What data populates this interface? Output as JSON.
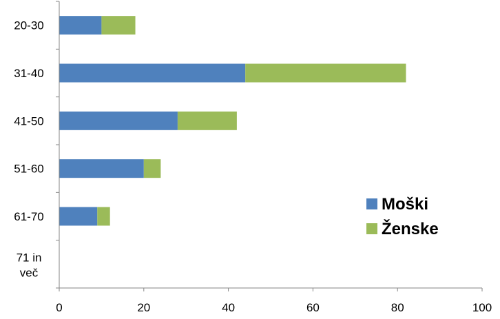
{
  "chart_data": {
    "type": "bar",
    "orientation": "horizontal",
    "stacked": true,
    "categories": [
      "20-30",
      "31-40",
      "41-50",
      "51-60",
      "61-70",
      "71 in več"
    ],
    "series": [
      {
        "name": "Moški",
        "values": [
          10,
          44,
          28,
          20,
          9,
          0
        ],
        "color": "#4f81bd"
      },
      {
        "name": "Ženske",
        "values": [
          8,
          38,
          14,
          4,
          3,
          0
        ],
        "color": "#9bbb59"
      }
    ],
    "xlim": [
      0,
      100
    ],
    "xticks": [
      0,
      20,
      40,
      60,
      80,
      100
    ],
    "grid": false,
    "legend_position": "right"
  }
}
